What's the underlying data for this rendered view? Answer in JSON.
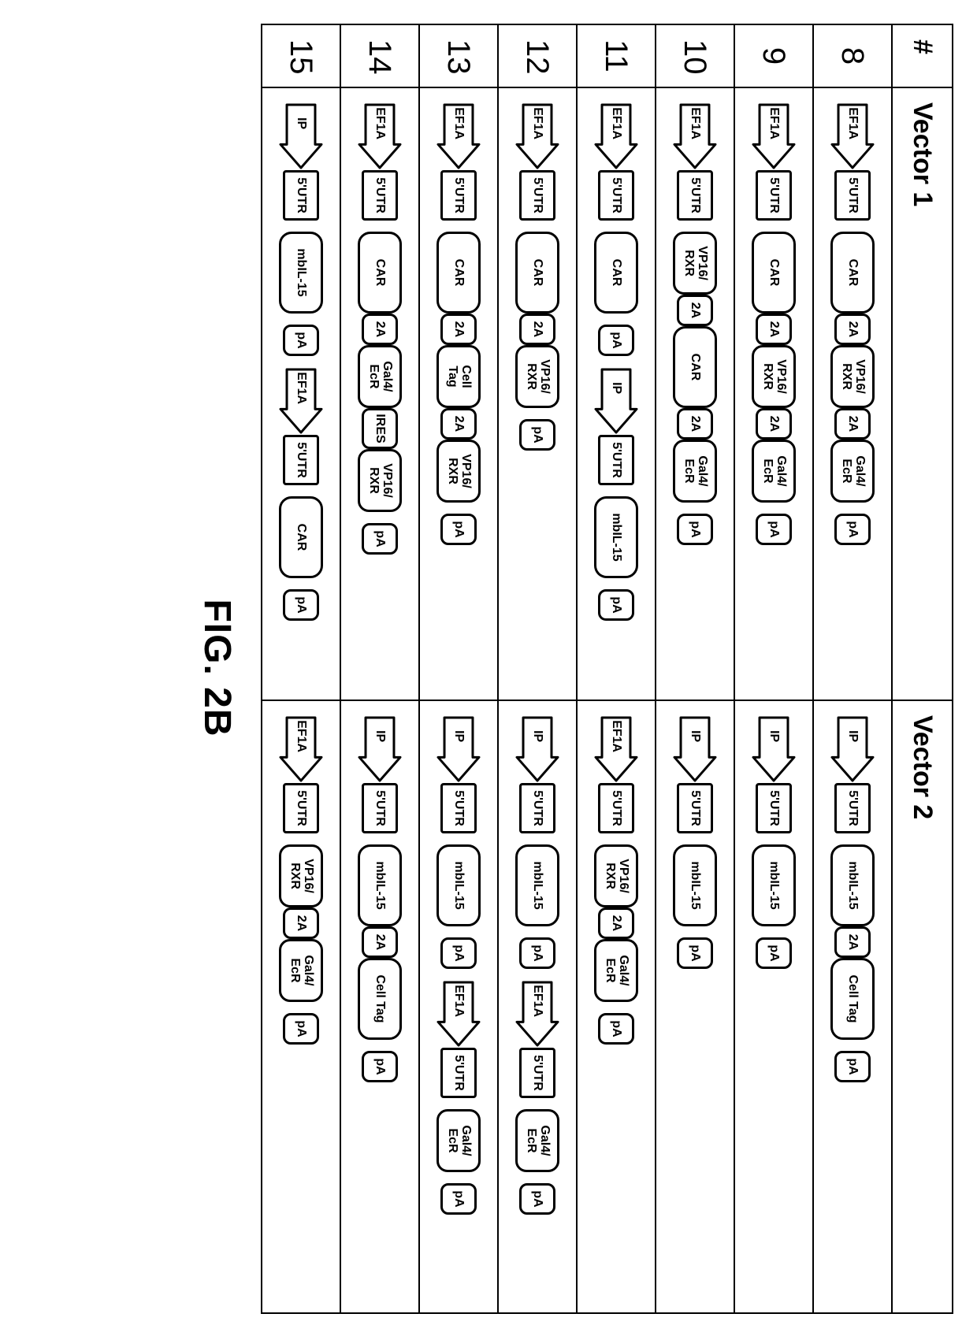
{
  "figure_label": "FIG. 2B",
  "headers": {
    "num": "#",
    "v1": "Vector 1",
    "v2": "Vector 2"
  },
  "arrow": {
    "width": 86,
    "height": 58,
    "stroke": "#000000",
    "fill": "#ffffff",
    "stroke_width": 3,
    "label_fontsize": 16
  },
  "block_styles": {
    "border_color": "#000000",
    "fill": "#ffffff",
    "font_weight": 700
  },
  "rows": [
    {
      "num": "8",
      "v1": [
        [
          {
            "t": "arrow",
            "label": "EF1A"
          },
          {
            "t": "block",
            "cls": "b-utr",
            "text": "5'UTR"
          },
          {
            "t": "gap"
          },
          {
            "t": "block",
            "cls": "b-lg",
            "text": "CAR"
          },
          {
            "t": "block",
            "cls": "b-sm",
            "text": "2A"
          },
          {
            "t": "block",
            "cls": "b-md",
            "text": "VP16/\nRXR"
          },
          {
            "t": "block",
            "cls": "b-sm",
            "text": "2A"
          },
          {
            "t": "block",
            "cls": "b-md",
            "text": "Gal4/\nEcR"
          },
          {
            "t": "gap"
          },
          {
            "t": "block",
            "cls": "b-pa",
            "text": "pA"
          }
        ]
      ],
      "v2": [
        [
          {
            "t": "arrow",
            "label": "IP"
          },
          {
            "t": "block",
            "cls": "b-utr",
            "text": "5'UTR"
          },
          {
            "t": "gap"
          },
          {
            "t": "block",
            "cls": "b-lg",
            "text": "mbIL-15"
          },
          {
            "t": "block",
            "cls": "b-sm",
            "text": "2A"
          },
          {
            "t": "block",
            "cls": "b-lg",
            "text": "Cell Tag"
          },
          {
            "t": "gap"
          },
          {
            "t": "block",
            "cls": "b-pa",
            "text": "pA"
          }
        ]
      ]
    },
    {
      "num": "9",
      "v1": [
        [
          {
            "t": "arrow",
            "label": "EF1A"
          },
          {
            "t": "block",
            "cls": "b-utr",
            "text": "5'UTR"
          },
          {
            "t": "gap"
          },
          {
            "t": "block",
            "cls": "b-lg",
            "text": "CAR"
          },
          {
            "t": "block",
            "cls": "b-sm",
            "text": "2A"
          },
          {
            "t": "block",
            "cls": "b-md",
            "text": "VP16/\nRXR"
          },
          {
            "t": "block",
            "cls": "b-sm",
            "text": "2A"
          },
          {
            "t": "block",
            "cls": "b-md",
            "text": "Gal4/\nEcR"
          },
          {
            "t": "gap"
          },
          {
            "t": "block",
            "cls": "b-pa",
            "text": "pA"
          }
        ]
      ],
      "v2": [
        [
          {
            "t": "arrow",
            "label": "IP"
          },
          {
            "t": "block",
            "cls": "b-utr",
            "text": "5'UTR"
          },
          {
            "t": "gap"
          },
          {
            "t": "block",
            "cls": "b-lg",
            "text": "mbIL-15"
          },
          {
            "t": "gap"
          },
          {
            "t": "block",
            "cls": "b-pa",
            "text": "pA"
          }
        ]
      ]
    },
    {
      "num": "10",
      "v1": [
        [
          {
            "t": "arrow",
            "label": "EF1A"
          },
          {
            "t": "block",
            "cls": "b-utr",
            "text": "5'UTR"
          },
          {
            "t": "gap"
          },
          {
            "t": "block",
            "cls": "b-md",
            "text": "VP16/\nRXR"
          },
          {
            "t": "block",
            "cls": "b-sm",
            "text": "2A"
          },
          {
            "t": "block",
            "cls": "b-lg",
            "text": "CAR"
          },
          {
            "t": "block",
            "cls": "b-sm",
            "text": "2A"
          },
          {
            "t": "block",
            "cls": "b-md",
            "text": "Gal4/\nEcR"
          },
          {
            "t": "gap"
          },
          {
            "t": "block",
            "cls": "b-pa",
            "text": "pA"
          }
        ]
      ],
      "v2": [
        [
          {
            "t": "arrow",
            "label": "IP"
          },
          {
            "t": "block",
            "cls": "b-utr",
            "text": "5'UTR"
          },
          {
            "t": "gap"
          },
          {
            "t": "block",
            "cls": "b-lg",
            "text": "mbIL-15"
          },
          {
            "t": "gap"
          },
          {
            "t": "block",
            "cls": "b-pa",
            "text": "pA"
          }
        ]
      ]
    },
    {
      "num": "11",
      "v1": [
        [
          {
            "t": "arrow",
            "label": "EF1A"
          },
          {
            "t": "block",
            "cls": "b-utr",
            "text": "5'UTR"
          },
          {
            "t": "gap"
          },
          {
            "t": "block",
            "cls": "b-lg",
            "text": "CAR"
          },
          {
            "t": "gap"
          },
          {
            "t": "block",
            "cls": "b-pa",
            "text": "pA"
          },
          {
            "t": "gap"
          },
          {
            "t": "arrow",
            "label": "IP"
          },
          {
            "t": "block",
            "cls": "b-utr",
            "text": "5'UTR"
          },
          {
            "t": "gap"
          },
          {
            "t": "block",
            "cls": "b-lg",
            "text": "mbIL-15"
          },
          {
            "t": "gap"
          },
          {
            "t": "block",
            "cls": "b-pa",
            "text": "pA"
          }
        ]
      ],
      "v2": [
        [
          {
            "t": "arrow",
            "label": "EF1A"
          },
          {
            "t": "block",
            "cls": "b-utr",
            "text": "5'UTR"
          },
          {
            "t": "gap"
          },
          {
            "t": "block",
            "cls": "b-md",
            "text": "VP16/\nRXR"
          },
          {
            "t": "block",
            "cls": "b-sm",
            "text": "2A"
          },
          {
            "t": "block",
            "cls": "b-md",
            "text": "Gal4/\nEcR"
          },
          {
            "t": "gap"
          },
          {
            "t": "block",
            "cls": "b-pa",
            "text": "pA"
          }
        ]
      ]
    },
    {
      "num": "12",
      "v1": [
        [
          {
            "t": "arrow",
            "label": "EF1A"
          },
          {
            "t": "block",
            "cls": "b-utr",
            "text": "5'UTR"
          },
          {
            "t": "gap"
          },
          {
            "t": "block",
            "cls": "b-lg",
            "text": "CAR"
          },
          {
            "t": "block",
            "cls": "b-sm",
            "text": "2A"
          },
          {
            "t": "block",
            "cls": "b-md",
            "text": "VP16/\nRXR"
          },
          {
            "t": "gap"
          },
          {
            "t": "block",
            "cls": "b-pa",
            "text": "pA"
          }
        ]
      ],
      "v2": [
        [
          {
            "t": "arrow",
            "label": "IP"
          },
          {
            "t": "block",
            "cls": "b-utr",
            "text": "5'UTR"
          },
          {
            "t": "gap"
          },
          {
            "t": "block",
            "cls": "b-lg",
            "text": "mbIL-15"
          },
          {
            "t": "gap"
          },
          {
            "t": "block",
            "cls": "b-pa",
            "text": "pA"
          },
          {
            "t": "gap"
          },
          {
            "t": "arrow",
            "label": "EF1A"
          },
          {
            "t": "block",
            "cls": "b-utr",
            "text": "5'UTR"
          },
          {
            "t": "gap"
          },
          {
            "t": "block",
            "cls": "b-md",
            "text": "Gal4/\nEcR"
          },
          {
            "t": "gap"
          },
          {
            "t": "block",
            "cls": "b-pa",
            "text": "pA"
          }
        ]
      ]
    },
    {
      "num": "13",
      "v1": [
        [
          {
            "t": "arrow",
            "label": "EF1A"
          },
          {
            "t": "block",
            "cls": "b-utr",
            "text": "5'UTR"
          },
          {
            "t": "gap"
          },
          {
            "t": "block",
            "cls": "b-lg",
            "text": "CAR"
          },
          {
            "t": "block",
            "cls": "b-sm",
            "text": "2A"
          },
          {
            "t": "block",
            "cls": "b-md",
            "text": "Cell\nTag"
          },
          {
            "t": "block",
            "cls": "b-sm",
            "text": "2A"
          },
          {
            "t": "block",
            "cls": "b-md",
            "text": "VP16/\nRXR"
          },
          {
            "t": "gap"
          },
          {
            "t": "block",
            "cls": "b-pa",
            "text": "pA"
          }
        ]
      ],
      "v2": [
        [
          {
            "t": "arrow",
            "label": "IP"
          },
          {
            "t": "block",
            "cls": "b-utr",
            "text": "5'UTR"
          },
          {
            "t": "gap"
          },
          {
            "t": "block",
            "cls": "b-lg",
            "text": "mbIL-15"
          },
          {
            "t": "gap"
          },
          {
            "t": "block",
            "cls": "b-pa",
            "text": "pA"
          },
          {
            "t": "gap"
          },
          {
            "t": "arrow",
            "label": "EF1A"
          },
          {
            "t": "block",
            "cls": "b-utr",
            "text": "5'UTR"
          },
          {
            "t": "gap"
          },
          {
            "t": "block",
            "cls": "b-md",
            "text": "Gal4/\nEcR"
          },
          {
            "t": "gap"
          },
          {
            "t": "block",
            "cls": "b-pa",
            "text": "pA"
          }
        ]
      ]
    },
    {
      "num": "14",
      "v1": [
        [
          {
            "t": "arrow",
            "label": "EF1A"
          },
          {
            "t": "block",
            "cls": "b-utr",
            "text": "5'UTR"
          },
          {
            "t": "gap"
          },
          {
            "t": "block",
            "cls": "b-lg",
            "text": "CAR"
          },
          {
            "t": "block",
            "cls": "b-sm",
            "text": "2A"
          },
          {
            "t": "block",
            "cls": "b-md",
            "text": "Gal4/\nEcR"
          },
          {
            "t": "block",
            "cls": "b-ires",
            "text": "IRES"
          },
          {
            "t": "block",
            "cls": "b-md",
            "text": "VP16/\nRXR"
          },
          {
            "t": "gap"
          },
          {
            "t": "block",
            "cls": "b-pa",
            "text": "pA"
          }
        ]
      ],
      "v2": [
        [
          {
            "t": "arrow",
            "label": "IP"
          },
          {
            "t": "block",
            "cls": "b-utr",
            "text": "5'UTR"
          },
          {
            "t": "gap"
          },
          {
            "t": "block",
            "cls": "b-lg",
            "text": "mbIL-15"
          },
          {
            "t": "block",
            "cls": "b-sm",
            "text": "2A"
          },
          {
            "t": "block",
            "cls": "b-lg",
            "text": "Cell Tag"
          },
          {
            "t": "gap"
          },
          {
            "t": "block",
            "cls": "b-pa",
            "text": "pA"
          }
        ]
      ]
    },
    {
      "num": "15",
      "v1": [
        [
          {
            "t": "arrow",
            "label": "IP"
          },
          {
            "t": "block",
            "cls": "b-utr",
            "text": "5'UTR"
          },
          {
            "t": "gap"
          },
          {
            "t": "block",
            "cls": "b-lg",
            "text": "mbIL-15"
          },
          {
            "t": "gap"
          },
          {
            "t": "block",
            "cls": "b-pa",
            "text": "pA"
          },
          {
            "t": "gap"
          },
          {
            "t": "arrow",
            "label": "EF1A"
          },
          {
            "t": "block",
            "cls": "b-utr",
            "text": "5'UTR"
          },
          {
            "t": "gap"
          },
          {
            "t": "block",
            "cls": "b-lg",
            "text": "CAR"
          },
          {
            "t": "gap"
          },
          {
            "t": "block",
            "cls": "b-pa",
            "text": "pA"
          }
        ]
      ],
      "v2": [
        [
          {
            "t": "arrow",
            "label": "EF1A"
          },
          {
            "t": "block",
            "cls": "b-utr",
            "text": "5'UTR"
          },
          {
            "t": "gap"
          },
          {
            "t": "block",
            "cls": "b-md",
            "text": "VP16/\nRXR"
          },
          {
            "t": "block",
            "cls": "b-sm",
            "text": "2A"
          },
          {
            "t": "block",
            "cls": "b-md",
            "text": "Gal4/\nEcR"
          },
          {
            "t": "gap"
          },
          {
            "t": "block",
            "cls": "b-pa",
            "text": "pA"
          }
        ]
      ]
    }
  ]
}
